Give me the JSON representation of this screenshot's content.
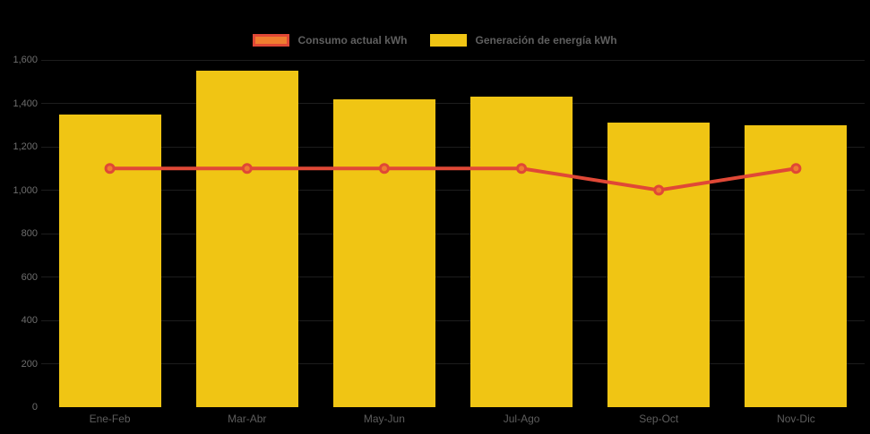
{
  "page": {
    "background": "#000000"
  },
  "legend": {
    "position": "top-center",
    "text_color": "#5f5f5f",
    "items": [
      {
        "label": "Consumo actual kWh",
        "type": "line",
        "fill": "#ef7d2f",
        "border": "#e04836"
      },
      {
        "label": "Generación de energía kWh",
        "type": "bar",
        "fill": "#f0c514",
        "border": "#f0c514"
      }
    ]
  },
  "chart_data": {
    "type": "combo-bar-line",
    "categories": [
      "Ene-Feb",
      "Mar-Abr",
      "May-Jun",
      "Jul-Ago",
      "Sep-Oct",
      "Nov-Dic"
    ],
    "series": [
      {
        "name": "Generación de energía kWh",
        "type": "bar",
        "color": "#f0c514",
        "values": [
          1350,
          1550,
          1420,
          1430,
          1310,
          1300
        ]
      },
      {
        "name": "Consumo actual kWh",
        "type": "line",
        "color": "#e04836",
        "marker_fill": "#ef7d2f",
        "values": [
          1100,
          1100,
          1100,
          1100,
          1000,
          1100
        ]
      }
    ],
    "title": "",
    "xlabel": "",
    "ylabel": "",
    "ylim": [
      0,
      1600
    ],
    "y_tick_step": 200,
    "y_tick_labels": [
      "0",
      "200",
      "400",
      "600",
      "800",
      "1,000",
      "1,200",
      "1,400",
      "1,600"
    ],
    "grid": true,
    "grid_color": "#1d1d1d",
    "axis_text_color": "#6e6e6e",
    "x_axis_text_color": "#5d5d5d",
    "background": "#000000",
    "legend_position": "top"
  }
}
